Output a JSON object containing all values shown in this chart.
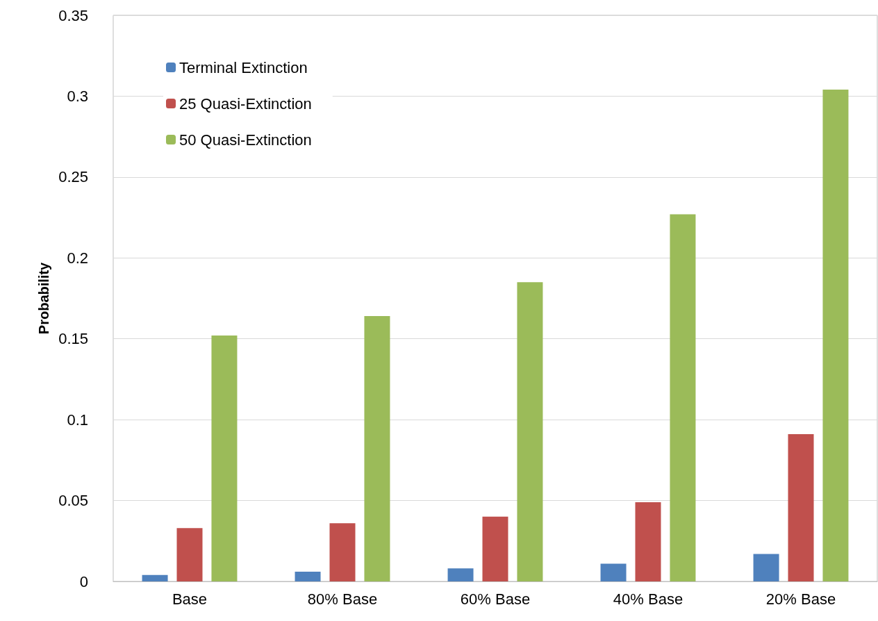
{
  "chart_data": {
    "type": "bar",
    "ylabel": "Probability",
    "categories": [
      "Base",
      "80% Base",
      "60% Base",
      "40% Base",
      "20% Base"
    ],
    "series": [
      {
        "name": "Terminal Extinction",
        "color": "#4f81bd",
        "values": [
          0.004,
          0.006,
          0.008,
          0.011,
          0.017
        ]
      },
      {
        "name": "25 Quasi-Extinction",
        "color": "#c0504d",
        "values": [
          0.033,
          0.036,
          0.04,
          0.049,
          0.091
        ]
      },
      {
        "name": "50 Quasi-Extinction",
        "color": "#9bbb59",
        "values": [
          0.152,
          0.164,
          0.185,
          0.227,
          0.304
        ]
      }
    ],
    "ylim": [
      0,
      0.35
    ],
    "yticks": [
      0,
      0.05,
      0.1,
      0.15,
      0.2,
      0.25,
      0.3,
      0.35
    ],
    "grid": "y",
    "legend": "top left"
  }
}
